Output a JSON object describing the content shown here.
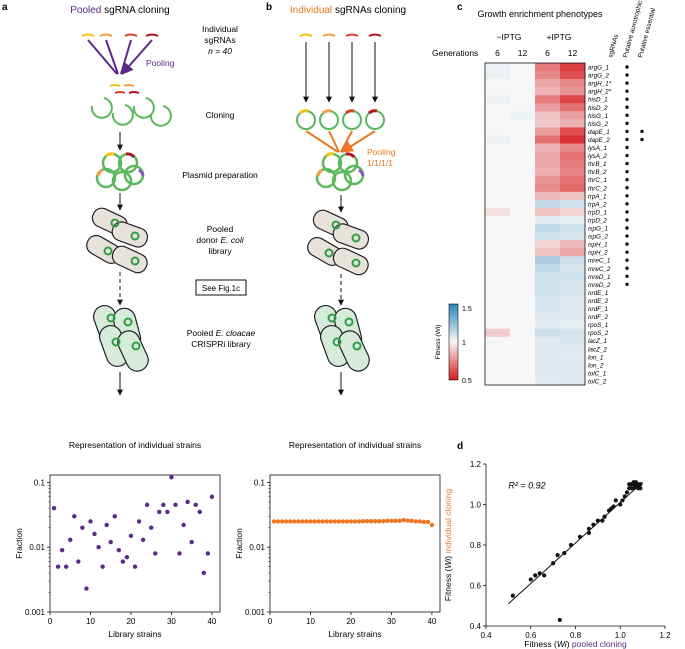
{
  "panel_a": {
    "letter": "a",
    "title_pooled": "Pooled",
    "title_rest": " sgRNA cloning",
    "individual_label": "Individual",
    "sgrnas_label": "sgRNAs",
    "n_label": "n = 40",
    "pooling_label": "Pooling",
    "step_cloning": "Cloning",
    "step_plasmid": "Plasmid preparation",
    "donor_line1": "Pooled",
    "donor_line2a": "donor ",
    "donor_line2b": "E. coli",
    "donor_line3": "library",
    "see_fig": "See Fig.1c",
    "cloacae_line1a": "Pooled ",
    "cloacae_line1b": "E. cloacae",
    "cloacae_line2": "CRISPRi library"
  },
  "panel_b": {
    "letter": "b",
    "title_individual": "Individual",
    "title_rest": " sgRNAs cloning",
    "pooling_label": "Pooling",
    "pooling_ratio": "1/1/1/1"
  },
  "panel_c": {
    "letter": "c",
    "title": "Growth enrichment phenotypes",
    "minus_iptg": "−IPTG",
    "plus_iptg": "+IPTG",
    "generations_label": "Generations",
    "gen_values": [
      "6",
      "12",
      "6",
      "12"
    ],
    "col_headers": [
      "sgRNAs",
      "Putative auxotrophic",
      "Putative essential"
    ],
    "colorbar_title": "Fitness (Wi)",
    "colorbar_ticks": [
      "1.5",
      "1",
      "0.5"
    ],
    "rows": [
      "argG_1",
      "argG_2",
      "argH_1*",
      "argH_2*",
      "hisD_1",
      "hisD_2",
      "hisG_1",
      "hisG_2",
      "dapE_1",
      "dapE_2",
      "lysA_1",
      "lysA_2",
      "thrB_1",
      "thrB_2",
      "thrC_1",
      "thrC_2",
      "trpA_1",
      "trpA_2",
      "trpD_1",
      "trpD_2",
      "ispG_1",
      "ispG_2",
      "ispH_1",
      "ispH_2",
      "mreC_1",
      "mreC_2",
      "mreD_1",
      "mreD_2",
      "nrdE_1",
      "nrdE_2",
      "nrdF_1",
      "nrdF_2",
      "rpoS_1",
      "rpoS_2",
      "lacZ_1",
      "lacZ_2",
      "lon_1",
      "lon_2",
      "tolC_1",
      "tolC_2"
    ],
    "auxotrophic": [
      1,
      1,
      1,
      1,
      1,
      1,
      1,
      1,
      1,
      1,
      1,
      1,
      1,
      1,
      1,
      1,
      1,
      1,
      1,
      1,
      1,
      1,
      1,
      1,
      1,
      1,
      1,
      1,
      0,
      0,
      0,
      0,
      0,
      0,
      0,
      0,
      0,
      0,
      0,
      0
    ],
    "essential": [
      0,
      0,
      0,
      0,
      0,
      0,
      0,
      0,
      1,
      1,
      0,
      0,
      0,
      0,
      0,
      0,
      0,
      0,
      0,
      0,
      0,
      0,
      0,
      0,
      0,
      0,
      0,
      0,
      0,
      0,
      0,
      0,
      0,
      0,
      0,
      0,
      0,
      0,
      0,
      0
    ],
    "fitness": [
      [
        1.02,
        1.0,
        0.72,
        0.58
      ],
      [
        1.03,
        1.0,
        0.75,
        0.62
      ],
      [
        1.0,
        1.0,
        0.82,
        0.75
      ],
      [
        1.0,
        1.0,
        0.85,
        0.78
      ],
      [
        1.02,
        1.0,
        0.72,
        0.6
      ],
      [
        1.0,
        1.0,
        0.8,
        0.7
      ],
      [
        1.0,
        1.02,
        0.88,
        0.8
      ],
      [
        1.0,
        1.0,
        0.9,
        0.85
      ],
      [
        1.0,
        1.0,
        0.8,
        0.62
      ],
      [
        1.02,
        1.0,
        0.7,
        0.55
      ],
      [
        1.0,
        1.0,
        0.85,
        0.75
      ],
      [
        1.0,
        1.0,
        0.82,
        0.7
      ],
      [
        1.0,
        1.0,
        0.82,
        0.72
      ],
      [
        1.0,
        1.0,
        0.84,
        0.74
      ],
      [
        1.0,
        1.0,
        0.78,
        0.7
      ],
      [
        1.0,
        1.0,
        0.76,
        0.68
      ],
      [
        1.0,
        1.0,
        0.86,
        0.88
      ],
      [
        1.0,
        1.0,
        1.12,
        1.1
      ],
      [
        0.95,
        1.0,
        0.88,
        0.92
      ],
      [
        1.0,
        1.0,
        1.05,
        1.04
      ],
      [
        1.0,
        1.0,
        1.12,
        1.1
      ],
      [
        1.0,
        1.0,
        1.1,
        1.08
      ],
      [
        1.0,
        1.0,
        0.92,
        0.86
      ],
      [
        1.0,
        1.0,
        0.88,
        0.82
      ],
      [
        1.0,
        1.0,
        1.18,
        1.1
      ],
      [
        1.0,
        1.0,
        1.12,
        1.08
      ],
      [
        1.0,
        1.0,
        1.1,
        1.1
      ],
      [
        1.0,
        1.0,
        1.1,
        1.08
      ],
      [
        1.0,
        1.0,
        1.1,
        1.08
      ],
      [
        1.0,
        1.0,
        1.08,
        1.06
      ],
      [
        1.0,
        1.0,
        1.08,
        1.06
      ],
      [
        1.0,
        1.0,
        1.06,
        1.06
      ],
      [
        1.0,
        1.0,
        1.05,
        1.04
      ],
      [
        0.9,
        1.0,
        1.1,
        1.08
      ],
      [
        1.0,
        1.0,
        1.06,
        1.08
      ],
      [
        1.0,
        1.0,
        1.06,
        1.06
      ],
      [
        1.0,
        1.0,
        1.06,
        1.05
      ],
      [
        1.0,
        1.0,
        1.06,
        1.06
      ],
      [
        1.0,
        1.0,
        1.06,
        1.06
      ],
      [
        1.0,
        1.0,
        1.05,
        1.06
      ]
    ]
  },
  "colors": {
    "purple": "#5a2a8a",
    "orange": "#ee7621",
    "plasmid": "#5cb85c",
    "cell_fill": "#e9e2dc",
    "cloacae_fill": "#d6ebd9",
    "heat_high": "#2b83ba",
    "heat_low": "#d7191c",
    "sg_yellow": "#f2c318",
    "sg_orange": "#f59e42",
    "sg_red": "#d9412b",
    "sg_darkred": "#b0171f"
  },
  "chart_data": [
    {
      "type": "scatter",
      "title": "Representation of individual strains",
      "xlabel": "Library strains",
      "ylabel": "Fraction",
      "yscale": "log",
      "xlim": [
        0,
        42
      ],
      "ylim": [
        0.001,
        0.13
      ],
      "x_ticks": [
        "0",
        "10",
        "20",
        "30",
        "40"
      ],
      "y_ticks": [
        "0.001",
        "0.01",
        "0.1"
      ],
      "x": [
        1,
        2,
        3,
        4,
        5,
        6,
        7,
        8,
        9,
        10,
        11,
        12,
        13,
        14,
        15,
        16,
        17,
        18,
        19,
        20,
        21,
        22,
        23,
        24,
        25,
        26,
        27,
        28,
        29,
        30,
        31,
        32,
        33,
        34,
        35,
        36,
        37,
        38,
        39,
        40
      ],
      "values": [
        0.04,
        0.005,
        0.009,
        0.005,
        0.013,
        0.03,
        0.006,
        0.02,
        0.0023,
        0.025,
        0.016,
        0.01,
        0.005,
        0.022,
        0.012,
        0.03,
        0.009,
        0.006,
        0.007,
        0.015,
        0.005,
        0.025,
        0.013,
        0.045,
        0.02,
        0.008,
        0.035,
        0.045,
        0.035,
        0.12,
        0.045,
        0.008,
        0.022,
        0.05,
        0.012,
        0.045,
        0.035,
        0.004,
        0.008,
        0.06
      ],
      "series_color": "#5a2a8a"
    },
    {
      "type": "scatter",
      "title": "Representation of individual strains",
      "xlabel": "Library strains",
      "ylabel": "Fraction",
      "yscale": "log",
      "xlim": [
        0,
        42
      ],
      "ylim": [
        0.001,
        0.13
      ],
      "x_ticks": [
        "0",
        "10",
        "20",
        "30",
        "40"
      ],
      "y_ticks": [
        "0.001",
        "0.01",
        "0.1"
      ],
      "x": [
        1,
        2,
        3,
        4,
        5,
        6,
        7,
        8,
        9,
        10,
        11,
        12,
        13,
        14,
        15,
        16,
        17,
        18,
        19,
        20,
        21,
        22,
        23,
        24,
        25,
        26,
        27,
        28,
        29,
        30,
        31,
        32,
        33,
        34,
        35,
        36,
        37,
        38,
        39,
        40
      ],
      "values": [
        0.025,
        0.025,
        0.025,
        0.025,
        0.025,
        0.025,
        0.025,
        0.025,
        0.025,
        0.025,
        0.025,
        0.025,
        0.025,
        0.025,
        0.025,
        0.025,
        0.025,
        0.025,
        0.025,
        0.025,
        0.025,
        0.025,
        0.0252,
        0.0252,
        0.0252,
        0.0252,
        0.0252,
        0.0252,
        0.0255,
        0.0255,
        0.0255,
        0.0255,
        0.0262,
        0.0258,
        0.0255,
        0.025,
        0.025,
        0.0245,
        0.0245,
        0.022
      ],
      "series_color": "#ee7621"
    },
    {
      "type": "scatter",
      "panel_letter": "d",
      "xlabel_prefix": "Fitness (",
      "xlabel_var": "Wi",
      "xlabel_suffix": ") ",
      "xlabel_colored": "pooled cloning",
      "ylabel_prefix": "Fitness (",
      "ylabel_var": "Wi",
      "ylabel_suffix": ") ",
      "ylabel_colored": "individual cloning",
      "annotation": "R² = 0.92",
      "xlim": [
        0.4,
        1.2
      ],
      "ylim": [
        0.4,
        1.2
      ],
      "x_ticks": [
        "0.4",
        "0.6",
        "0.8",
        "1.0",
        "1.2"
      ],
      "y_ticks": [
        "0.4",
        "0.6",
        "0.8",
        "1.0",
        "1.2"
      ],
      "fit_line": [
        [
          0.5,
          0.51
        ],
        [
          1.1,
          1.11
        ]
      ],
      "x": [
        0.52,
        0.6,
        0.62,
        0.64,
        0.66,
        0.7,
        0.72,
        0.75,
        0.78,
        0.82,
        0.86,
        0.86,
        0.88,
        0.9,
        0.92,
        0.93,
        0.95,
        0.96,
        0.97,
        0.98,
        1.0,
        1.01,
        1.02,
        1.03,
        1.04,
        1.05,
        1.05,
        1.06,
        1.06,
        1.07,
        1.07,
        1.08,
        1.08,
        1.08,
        1.09,
        1.09,
        1.06,
        1.07,
        0.73,
        1.04
      ],
      "values": [
        0.55,
        0.63,
        0.65,
        0.66,
        0.65,
        0.71,
        0.75,
        0.76,
        0.8,
        0.84,
        0.88,
        0.86,
        0.9,
        0.92,
        0.92,
        0.94,
        0.97,
        0.98,
        0.99,
        1.02,
        1.0,
        1.02,
        1.04,
        1.06,
        1.08,
        1.1,
        1.08,
        1.1,
        1.08,
        1.1,
        1.09,
        1.1,
        1.08,
        1.09,
        1.1,
        1.08,
        1.11,
        1.11,
        0.43,
        1.1
      ]
    }
  ]
}
